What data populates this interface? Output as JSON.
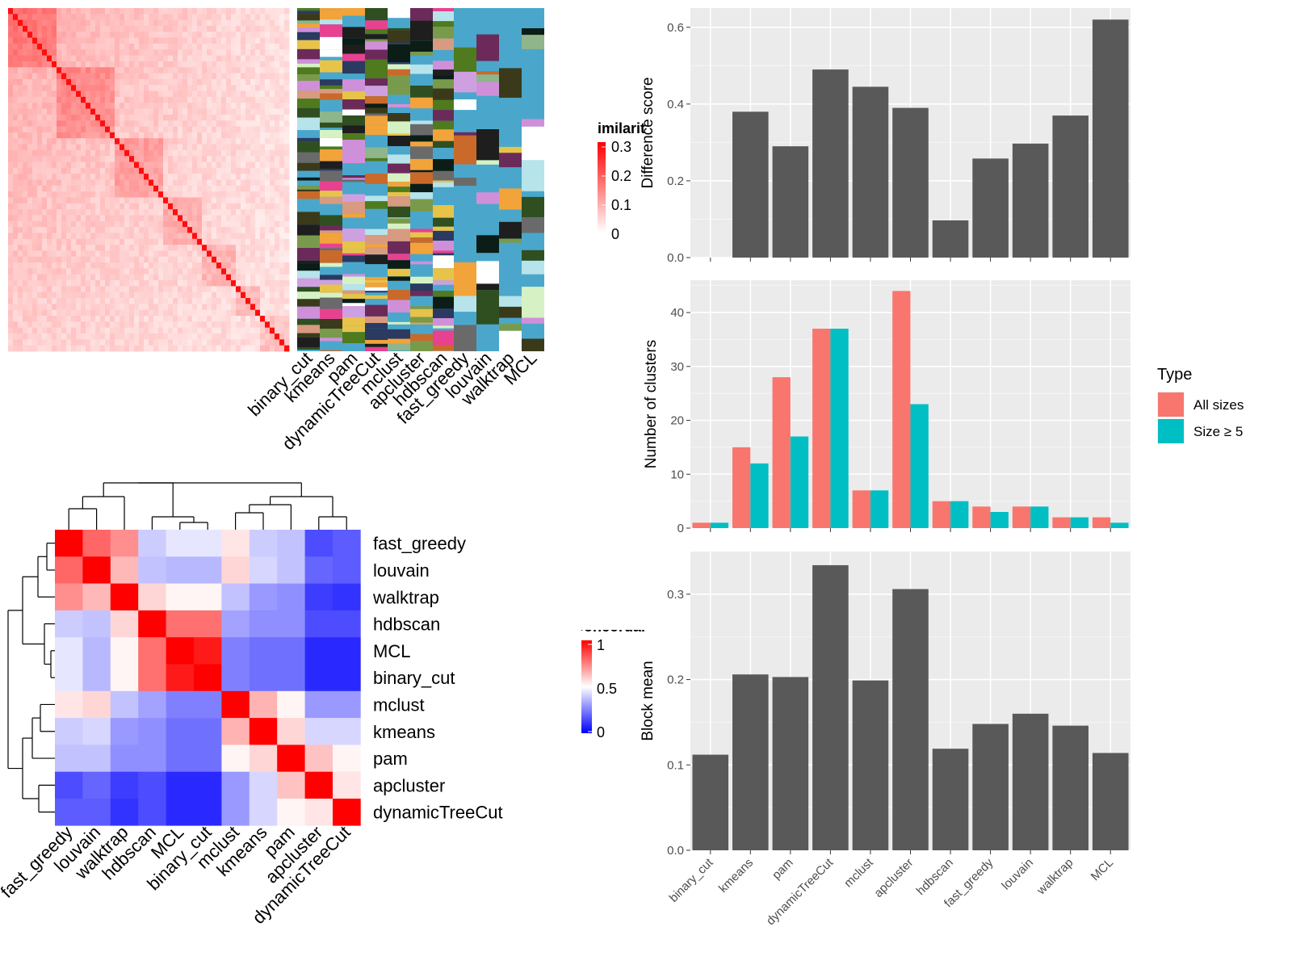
{
  "chart_data": [
    {
      "type": "heatmap",
      "title": "",
      "legend": {
        "title": "Similarity",
        "ticks": [
          "0.3",
          "0.2",
          "0.1",
          "0"
        ],
        "range": [
          0,
          0.3
        ],
        "placement": "right"
      },
      "note": "Large square similarity heatmap with a strong diagonal; individual cell values are not printed."
    },
    {
      "type": "heatmap",
      "title": "",
      "columns": [
        "binary_cut",
        "kmeans",
        "pam",
        "dynamicTreeCut",
        "mclust",
        "apcluster",
        "hdbscan",
        "fast_greedy",
        "louvain",
        "walktrap",
        "MCL"
      ],
      "note": "Categorical cluster-membership annotation columns, one per method."
    },
    {
      "type": "bar",
      "title": "",
      "categories": [
        "binary_cut",
        "kmeans",
        "pam",
        "dynamicTreeCut",
        "mclust",
        "apcluster",
        "hdbscan",
        "fast_greedy",
        "louvain",
        "walktrap",
        "MCL"
      ],
      "values": [
        0.0,
        0.38,
        0.29,
        0.49,
        0.445,
        0.39,
        0.097,
        0.258,
        0.297,
        0.37,
        0.62
      ],
      "xlabel": "",
      "ylabel": "Difference score",
      "ylim": [
        0,
        0.65
      ],
      "yticks": [
        "0.0",
        "0.2",
        "0.4",
        "0.6"
      ],
      "grid": true,
      "bar_color": "#595959"
    },
    {
      "type": "bar",
      "title": "",
      "categories": [
        "binary_cut",
        "kmeans",
        "pam",
        "dynamicTreeCut",
        "mclust",
        "apcluster",
        "hdbscan",
        "fast_greedy",
        "louvain",
        "walktrap",
        "MCL"
      ],
      "series": [
        {
          "name": "All sizes",
          "values": [
            1,
            15,
            28,
            37,
            7,
            44,
            5,
            4,
            4,
            2,
            2
          ],
          "color": "#F8766D"
        },
        {
          "name": "Size ≥ 5",
          "values": [
            1,
            12,
            17,
            37,
            7,
            23,
            5,
            3,
            4,
            2,
            1
          ],
          "color": "#00BFC4"
        }
      ],
      "xlabel": "",
      "ylabel": "Number of clusters",
      "ylim": [
        0,
        46
      ],
      "yticks": [
        "0",
        "10",
        "20",
        "30",
        "40"
      ],
      "grid": true,
      "legend": {
        "title": "Type",
        "placement": "right"
      }
    },
    {
      "type": "bar",
      "title": "",
      "categories": [
        "binary_cut",
        "kmeans",
        "pam",
        "dynamicTreeCut",
        "mclust",
        "apcluster",
        "hdbscan",
        "fast_greedy",
        "louvain",
        "walktrap",
        "MCL"
      ],
      "values": [
        0.112,
        0.206,
        0.203,
        0.334,
        0.199,
        0.306,
        0.119,
        0.148,
        0.16,
        0.146,
        0.114
      ],
      "xlabel": "",
      "ylabel": "Block mean",
      "ylim": [
        0,
        0.35
      ],
      "yticks": [
        "0.0",
        "0.1",
        "0.2",
        "0.3"
      ],
      "grid": true,
      "bar_color": "#595959"
    },
    {
      "type": "heatmap",
      "title": "",
      "rows": [
        "fast_greedy",
        "louvain",
        "walktrap",
        "hdbscan",
        "MCL",
        "binary_cut",
        "mclust",
        "kmeans",
        "pam",
        "apcluster",
        "dynamicTreeCut"
      ],
      "columns": [
        "fast_greedy",
        "louvain",
        "walktrap",
        "hdbscan",
        "MCL",
        "binary_cut",
        "mclust",
        "kmeans",
        "pam",
        "apcluster",
        "dynamicTreeCut"
      ],
      "values": [
        [
          1.0,
          0.8,
          0.72,
          0.4,
          0.45,
          0.45,
          0.55,
          0.4,
          0.38,
          0.15,
          0.18
        ],
        [
          0.8,
          1.0,
          0.64,
          0.38,
          0.36,
          0.36,
          0.58,
          0.42,
          0.38,
          0.2,
          0.18
        ],
        [
          0.72,
          0.64,
          1.0,
          0.58,
          0.52,
          0.52,
          0.38,
          0.3,
          0.28,
          0.12,
          0.1
        ],
        [
          0.4,
          0.38,
          0.58,
          1.0,
          0.78,
          0.78,
          0.32,
          0.28,
          0.28,
          0.15,
          0.15
        ],
        [
          0.45,
          0.36,
          0.52,
          0.78,
          1.0,
          0.95,
          0.25,
          0.22,
          0.22,
          0.08,
          0.08
        ],
        [
          0.45,
          0.36,
          0.52,
          0.78,
          0.95,
          1.0,
          0.25,
          0.22,
          0.22,
          0.08,
          0.08
        ],
        [
          0.55,
          0.58,
          0.38,
          0.32,
          0.25,
          0.25,
          1.0,
          0.65,
          0.52,
          0.3,
          0.3
        ],
        [
          0.4,
          0.42,
          0.3,
          0.28,
          0.22,
          0.22,
          0.65,
          1.0,
          0.58,
          0.42,
          0.42
        ],
        [
          0.38,
          0.38,
          0.28,
          0.28,
          0.22,
          0.22,
          0.52,
          0.58,
          1.0,
          0.62,
          0.52
        ],
        [
          0.15,
          0.2,
          0.12,
          0.15,
          0.08,
          0.08,
          0.3,
          0.42,
          0.62,
          1.0,
          0.55
        ],
        [
          0.18,
          0.18,
          0.1,
          0.15,
          0.08,
          0.08,
          0.3,
          0.42,
          0.52,
          0.55,
          1.0
        ]
      ],
      "legend": {
        "title": "Concordance",
        "ticks": [
          "1",
          "0.5",
          "0"
        ],
        "range": [
          0,
          1
        ],
        "placement": "right"
      },
      "dendrogram": "rows and columns clustered"
    }
  ]
}
